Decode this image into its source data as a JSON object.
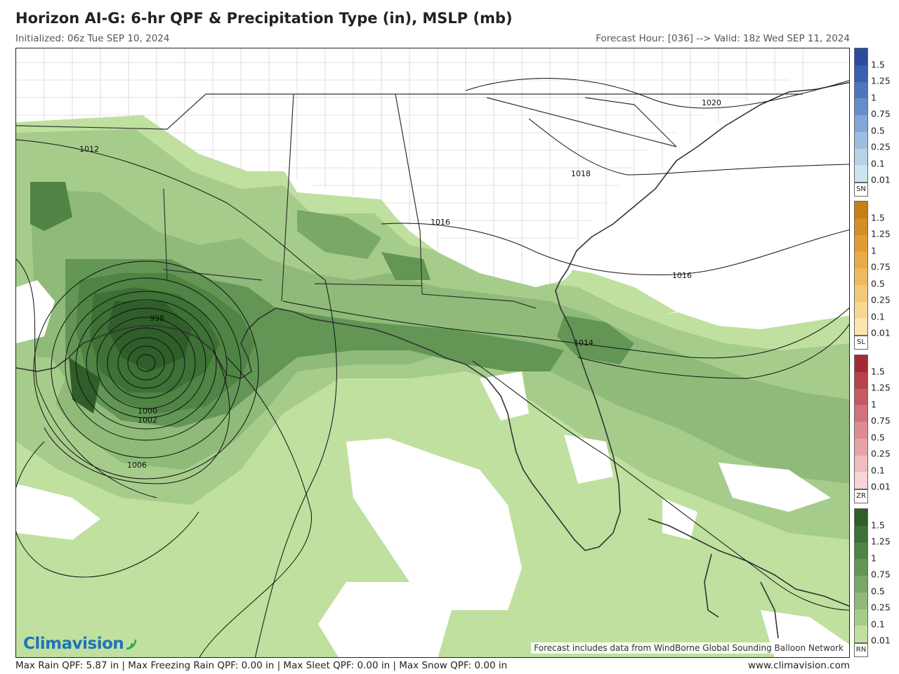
{
  "header": {
    "title": "Horizon AI-G: 6-hr QPF & Precipitation Type (in), MSLP (mb)",
    "initialized": "Initialized: 06z Tue SEP 10, 2024",
    "valid": "Forecast Hour: [036] --> Valid: 18z Wed SEP 11, 2024"
  },
  "map": {
    "credit": "Forecast includes data from WindBorne Global Sounding Balloon Network",
    "logo_text": "Climavision",
    "isobars": [
      "1012",
      "1020",
      "1018",
      "1016",
      "1016",
      "1014",
      "998",
      "1000",
      "1002",
      "1006"
    ]
  },
  "legend": {
    "groups": [
      {
        "code": "SN",
        "ticks": [
          "1.5",
          "1.25",
          "1",
          "0.75",
          "0.5",
          "0.25",
          "0.1",
          "0.01"
        ],
        "colors": [
          "#2e4a9e",
          "#3a5fb0",
          "#4f75bf",
          "#678dcb",
          "#82a6d6",
          "#9dbddf",
          "#b5d2e6",
          "#cde4ee"
        ]
      },
      {
        "code": "SL",
        "ticks": [
          "1.5",
          "1.25",
          "1",
          "0.75",
          "0.5",
          "0.25",
          "0.1",
          "0.01"
        ],
        "colors": [
          "#c77f14",
          "#d58e22",
          "#df9d33",
          "#e7ab47",
          "#eeba5e",
          "#f3c977",
          "#f7d891",
          "#fbe6ad"
        ]
      },
      {
        "code": "ZR",
        "ticks": [
          "1.5",
          "1.25",
          "1",
          "0.75",
          "0.5",
          "0.25",
          "0.1",
          "0.01"
        ],
        "colors": [
          "#a62a34",
          "#b7424b",
          "#c55a62",
          "#d1737a",
          "#dc8c92",
          "#e6a4a9",
          "#efbcc0",
          "#f7d4d6"
        ]
      },
      {
        "code": "RN",
        "ticks": [
          "1.5",
          "1.25",
          "1",
          "0.75",
          "0.5",
          "0.25",
          "0.1",
          "0.01"
        ],
        "colors": [
          "#2f5e2a",
          "#3d7135",
          "#4f8444",
          "#639655",
          "#79a867",
          "#8fba79",
          "#a6cc8c",
          "#bfe09f"
        ]
      }
    ]
  },
  "footer": {
    "stats": "Max Rain QPF: 5.87 in  |  Max Freezing Rain QPF: 0.00 in  |  Max Sleet QPF: 0.00 in  |  Max Snow QPF: 0.00 in",
    "url": "www.climavision.com"
  }
}
